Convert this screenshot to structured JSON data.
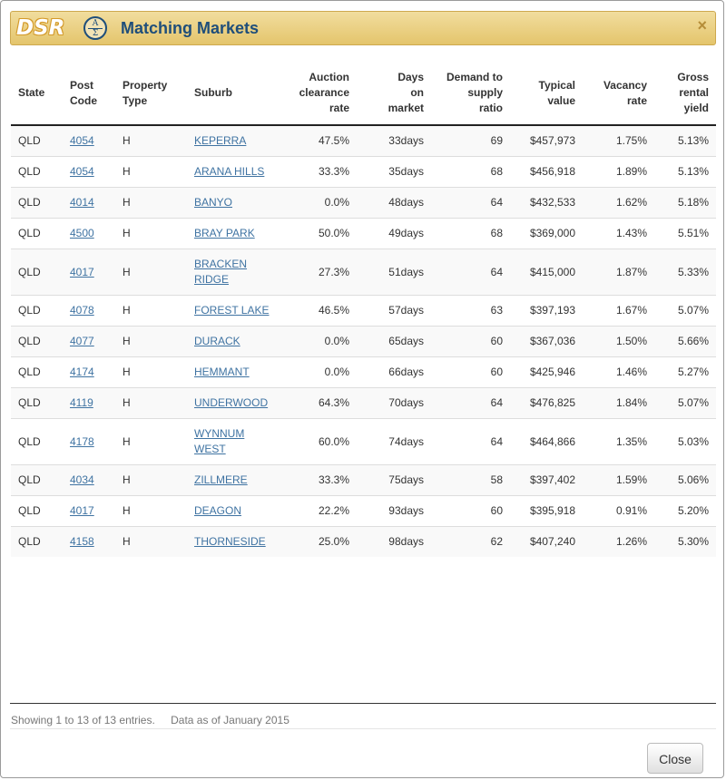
{
  "header": {
    "logo_text": "DSR",
    "logo_badge_top": "A",
    "logo_badge_bottom": "Σ",
    "title": "Matching Markets",
    "close_glyph": "×"
  },
  "table": {
    "columns": [
      {
        "key": "state",
        "label": "State",
        "align": "l"
      },
      {
        "key": "post_code",
        "label": "Post\nCode",
        "align": "l"
      },
      {
        "key": "property_type",
        "label": "Property\nType",
        "align": "l"
      },
      {
        "key": "suburb",
        "label": "Suburb",
        "align": "l"
      },
      {
        "key": "auction_clearance_rate",
        "label": "Auction\nclearance\nrate",
        "align": "r"
      },
      {
        "key": "days_on_market",
        "label": "Days\non\nmarket",
        "align": "r"
      },
      {
        "key": "demand_to_supply_ratio",
        "label": "Demand to\nsupply\nratio",
        "align": "r"
      },
      {
        "key": "typical_value",
        "label": "Typical\nvalue",
        "align": "r"
      },
      {
        "key": "vacancy_rate",
        "label": "Vacancy\nrate",
        "align": "r"
      },
      {
        "key": "gross_rental_yield",
        "label": "Gross\nrental\nyield",
        "align": "r"
      }
    ],
    "rows": [
      {
        "state": "QLD",
        "post_code": "4054",
        "property_type": "H",
        "suburb": "KEPERRA",
        "auction_clearance_rate": "47.5%",
        "days_on_market": "33days",
        "demand_to_supply_ratio": "69",
        "typical_value": "$457,973",
        "vacancy_rate": "1.75%",
        "gross_rental_yield": "5.13%"
      },
      {
        "state": "QLD",
        "post_code": "4054",
        "property_type": "H",
        "suburb": "ARANA HILLS",
        "auction_clearance_rate": "33.3%",
        "days_on_market": "35days",
        "demand_to_supply_ratio": "68",
        "typical_value": "$456,918",
        "vacancy_rate": "1.89%",
        "gross_rental_yield": "5.13%"
      },
      {
        "state": "QLD",
        "post_code": "4014",
        "property_type": "H",
        "suburb": "BANYO",
        "auction_clearance_rate": "0.0%",
        "days_on_market": "48days",
        "demand_to_supply_ratio": "64",
        "typical_value": "$432,533",
        "vacancy_rate": "1.62%",
        "gross_rental_yield": "5.18%"
      },
      {
        "state": "QLD",
        "post_code": "4500",
        "property_type": "H",
        "suburb": "BRAY PARK",
        "auction_clearance_rate": "50.0%",
        "days_on_market": "49days",
        "demand_to_supply_ratio": "68",
        "typical_value": "$369,000",
        "vacancy_rate": "1.43%",
        "gross_rental_yield": "5.51%"
      },
      {
        "state": "QLD",
        "post_code": "4017",
        "property_type": "H",
        "suburb": "BRACKEN RIDGE",
        "auction_clearance_rate": "27.3%",
        "days_on_market": "51days",
        "demand_to_supply_ratio": "64",
        "typical_value": "$415,000",
        "vacancy_rate": "1.87%",
        "gross_rental_yield": "5.33%"
      },
      {
        "state": "QLD",
        "post_code": "4078",
        "property_type": "H",
        "suburb": "FOREST LAKE",
        "auction_clearance_rate": "46.5%",
        "days_on_market": "57days",
        "demand_to_supply_ratio": "63",
        "typical_value": "$397,193",
        "vacancy_rate": "1.67%",
        "gross_rental_yield": "5.07%"
      },
      {
        "state": "QLD",
        "post_code": "4077",
        "property_type": "H",
        "suburb": "DURACK",
        "auction_clearance_rate": "0.0%",
        "days_on_market": "65days",
        "demand_to_supply_ratio": "60",
        "typical_value": "$367,036",
        "vacancy_rate": "1.50%",
        "gross_rental_yield": "5.66%"
      },
      {
        "state": "QLD",
        "post_code": "4174",
        "property_type": "H",
        "suburb": "HEMMANT",
        "auction_clearance_rate": "0.0%",
        "days_on_market": "66days",
        "demand_to_supply_ratio": "60",
        "typical_value": "$425,946",
        "vacancy_rate": "1.46%",
        "gross_rental_yield": "5.27%"
      },
      {
        "state": "QLD",
        "post_code": "4119",
        "property_type": "H",
        "suburb": "UNDERWOOD",
        "auction_clearance_rate": "64.3%",
        "days_on_market": "70days",
        "demand_to_supply_ratio": "64",
        "typical_value": "$476,825",
        "vacancy_rate": "1.84%",
        "gross_rental_yield": "5.07%"
      },
      {
        "state": "QLD",
        "post_code": "4178",
        "property_type": "H",
        "suburb": "WYNNUM WEST",
        "auction_clearance_rate": "60.0%",
        "days_on_market": "74days",
        "demand_to_supply_ratio": "64",
        "typical_value": "$464,866",
        "vacancy_rate": "1.35%",
        "gross_rental_yield": "5.03%"
      },
      {
        "state": "QLD",
        "post_code": "4034",
        "property_type": "H",
        "suburb": "ZILLMERE",
        "auction_clearance_rate": "33.3%",
        "days_on_market": "75days",
        "demand_to_supply_ratio": "58",
        "typical_value": "$397,402",
        "vacancy_rate": "1.59%",
        "gross_rental_yield": "5.06%"
      },
      {
        "state": "QLD",
        "post_code": "4017",
        "property_type": "H",
        "suburb": "DEAGON",
        "auction_clearance_rate": "22.2%",
        "days_on_market": "93days",
        "demand_to_supply_ratio": "60",
        "typical_value": "$395,918",
        "vacancy_rate": "0.91%",
        "gross_rental_yield": "5.20%"
      },
      {
        "state": "QLD",
        "post_code": "4158",
        "property_type": "H",
        "suburb": "THORNESIDE",
        "auction_clearance_rate": "25.0%",
        "days_on_market": "98days",
        "demand_to_supply_ratio": "62",
        "typical_value": "$407,240",
        "vacancy_rate": "1.26%",
        "gross_rental_yield": "5.30%"
      }
    ]
  },
  "footer": {
    "entries_text": "Showing 1 to 13 of 13 entries.",
    "data_as_of": "Data as of January 2015",
    "close_button_label": "Close"
  },
  "colors": {
    "title": "#1f4e7a",
    "link": "#3f73a2",
    "header_bg": "#e9cd7e"
  }
}
